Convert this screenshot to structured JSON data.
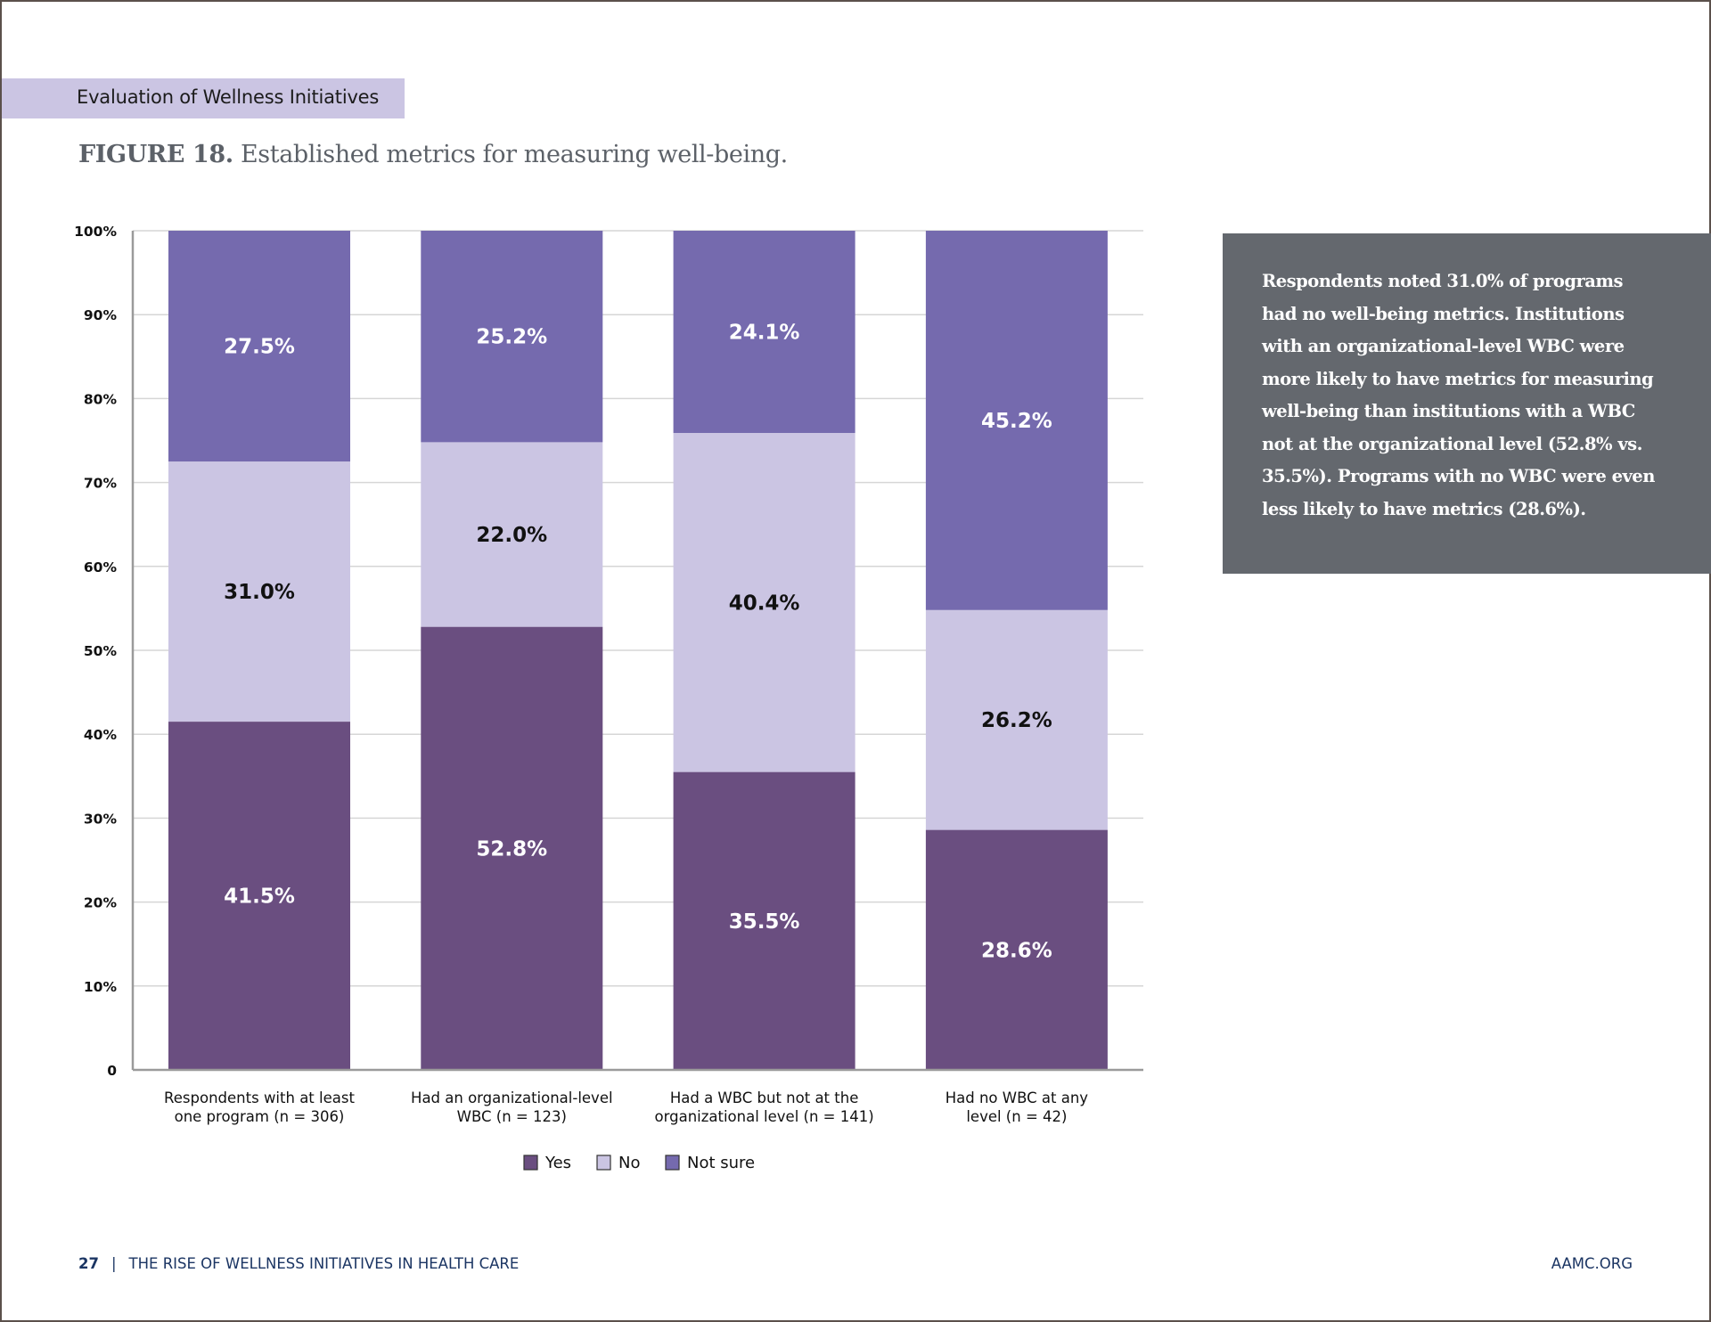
{
  "section": {
    "label": "Evaluation of Wellness Initiatives"
  },
  "figure": {
    "number": "FIGURE 18.",
    "caption": "Established metrics for measuring well-being."
  },
  "callout": {
    "text": "Respondents noted 31.0% of programs had no well-being metrics. Institutions with an organizational-level WBC were more likely to have metrics for measuring well-being than institutions with a WBC not at the organizational level (52.8% vs. 35.5%). Programs with no WBC were even less likely to have metrics (28.6%)."
  },
  "footer": {
    "page_number": "27",
    "separator": "|",
    "publication": "THE RISE OF WELLNESS INITIATIVES IN HEALTH CARE",
    "site": "AAMC.ORG"
  },
  "colors": {
    "yes": "#6a4e80",
    "no": "#cbc5e3",
    "not_sure": "#756aae",
    "section_band": "#cbc5e3",
    "callout_bg": "#64686e",
    "footer_text": "#1b3563"
  },
  "chart_data": {
    "type": "bar",
    "stacked": true,
    "title": "Established metrics for measuring well-being.",
    "xlabel": "",
    "ylabel": "",
    "ylim": [
      0,
      100
    ],
    "yticks": [
      0,
      10,
      20,
      30,
      40,
      50,
      60,
      70,
      80,
      90,
      100
    ],
    "ytick_labels": [
      "0",
      "10%",
      "20%",
      "30%",
      "40%",
      "50%",
      "60%",
      "70%",
      "80%",
      "90%",
      "100%"
    ],
    "grid": true,
    "legend_position": "bottom-center",
    "categories": [
      [
        "Respondents with at least",
        "one program (n = 306)"
      ],
      [
        "Had an organizational-level",
        "WBC (n = 123)"
      ],
      [
        "Had a WBC but not at the",
        "organizational level (n = 141)"
      ],
      [
        "Had no WBC at any",
        "level (n = 42)"
      ]
    ],
    "series": [
      {
        "name": "Yes",
        "key": "yes",
        "values": [
          41.5,
          52.8,
          35.5,
          28.6
        ],
        "label_color": "#ffffff"
      },
      {
        "name": "No",
        "key": "no",
        "values": [
          31.0,
          22.0,
          40.4,
          26.2
        ],
        "label_color": "#111111"
      },
      {
        "name": "Not sure",
        "key": "not_sure",
        "values": [
          27.5,
          25.2,
          24.1,
          45.2
        ],
        "label_color": "#ffffff"
      }
    ],
    "value_suffix": "%"
  }
}
